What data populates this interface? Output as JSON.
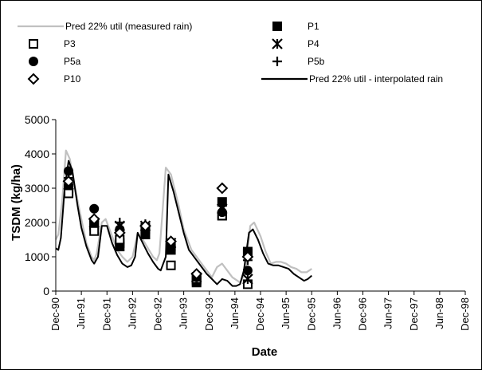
{
  "chart_data": {
    "type": "line",
    "xlabel": "Date",
    "ylabel": "TSDM (kg/ha)",
    "ylim": [
      0,
      5000
    ],
    "yticks": [
      0,
      1000,
      2000,
      3000,
      4000,
      5000
    ],
    "x_tick_labels": [
      "Dec-90",
      "Jun-91",
      "Dec-91",
      "Jun-92",
      "Dec-92",
      "Jun-93",
      "Dec-93",
      "Jun-94",
      "Dec-94",
      "Jun-95",
      "Dec-95",
      "Jun-96",
      "Dec-96",
      "Jun-97",
      "Dec-97",
      "Jun-98",
      "Dec-98"
    ],
    "grid": false,
    "legend_position": "top",
    "series": [
      {
        "name": "Pred 22% util (measured rain)",
        "kind": "line",
        "color": "#c0c0c0",
        "points": [
          [
            0.0,
            1500
          ],
          [
            0.1,
            1650
          ],
          [
            0.25,
            2600
          ],
          [
            0.4,
            4100
          ],
          [
            0.55,
            3850
          ],
          [
            0.7,
            3200
          ],
          [
            1.0,
            2100
          ],
          [
            1.2,
            1400
          ],
          [
            1.4,
            1000
          ],
          [
            1.5,
            900
          ],
          [
            1.6,
            1100
          ],
          [
            1.8,
            2000
          ],
          [
            1.95,
            2100
          ],
          [
            2.2,
            1600
          ],
          [
            2.4,
            1200
          ],
          [
            2.6,
            1000
          ],
          [
            2.8,
            850
          ],
          [
            3.0,
            1000
          ],
          [
            3.2,
            1700
          ],
          [
            3.4,
            1500
          ],
          [
            3.6,
            1250
          ],
          [
            3.8,
            1000
          ],
          [
            3.95,
            900
          ],
          [
            4.05,
            1100
          ],
          [
            4.3,
            3600
          ],
          [
            4.5,
            3400
          ],
          [
            4.8,
            2500
          ],
          [
            5.0,
            1800
          ],
          [
            5.3,
            1200
          ],
          [
            5.5,
            1000
          ],
          [
            5.7,
            800
          ],
          [
            5.9,
            600
          ],
          [
            6.1,
            400
          ],
          [
            6.3,
            700
          ],
          [
            6.5,
            800
          ],
          [
            6.7,
            600
          ],
          [
            6.9,
            400
          ],
          [
            7.1,
            300
          ],
          [
            7.2,
            250
          ],
          [
            7.4,
            500
          ],
          [
            7.6,
            1900
          ],
          [
            7.75,
            2000
          ],
          [
            8.0,
            1600
          ],
          [
            8.2,
            1150
          ],
          [
            8.4,
            800
          ],
          [
            8.6,
            850
          ],
          [
            8.8,
            850
          ],
          [
            9.0,
            800
          ],
          [
            9.2,
            700
          ],
          [
            9.4,
            650
          ],
          [
            9.6,
            550
          ],
          [
            9.8,
            550
          ],
          [
            10.0,
            650
          ]
        ]
      },
      {
        "name": "Pred 22% util - interpolated rain",
        "kind": "line",
        "color": "#000000",
        "points": [
          [
            0.0,
            1250
          ],
          [
            0.1,
            1200
          ],
          [
            0.2,
            1550
          ],
          [
            0.35,
            3000
          ],
          [
            0.5,
            3800
          ],
          [
            0.65,
            3500
          ],
          [
            0.85,
            2500
          ],
          [
            1.0,
            1850
          ],
          [
            1.2,
            1300
          ],
          [
            1.4,
            900
          ],
          [
            1.5,
            800
          ],
          [
            1.65,
            1000
          ],
          [
            1.8,
            1900
          ],
          [
            2.0,
            1900
          ],
          [
            2.2,
            1400
          ],
          [
            2.4,
            1050
          ],
          [
            2.6,
            800
          ],
          [
            2.8,
            700
          ],
          [
            2.95,
            750
          ],
          [
            3.1,
            1000
          ],
          [
            3.2,
            1700
          ],
          [
            3.4,
            1400
          ],
          [
            3.6,
            1100
          ],
          [
            3.8,
            850
          ],
          [
            4.0,
            650
          ],
          [
            4.1,
            600
          ],
          [
            4.3,
            1000
          ],
          [
            4.4,
            3400
          ],
          [
            4.6,
            2900
          ],
          [
            4.8,
            2300
          ],
          [
            5.0,
            1700
          ],
          [
            5.2,
            1200
          ],
          [
            5.5,
            900
          ],
          [
            5.7,
            700
          ],
          [
            5.9,
            500
          ],
          [
            6.1,
            350
          ],
          [
            6.3,
            200
          ],
          [
            6.5,
            350
          ],
          [
            6.7,
            300
          ],
          [
            6.9,
            150
          ],
          [
            7.05,
            150
          ],
          [
            7.2,
            200
          ],
          [
            7.35,
            600
          ],
          [
            7.55,
            1700
          ],
          [
            7.7,
            1800
          ],
          [
            7.9,
            1500
          ],
          [
            8.1,
            1100
          ],
          [
            8.3,
            800
          ],
          [
            8.5,
            750
          ],
          [
            8.7,
            750
          ],
          [
            8.9,
            700
          ],
          [
            9.1,
            650
          ],
          [
            9.3,
            500
          ],
          [
            9.5,
            400
          ],
          [
            9.7,
            300
          ],
          [
            9.85,
            350
          ],
          [
            10.0,
            450
          ]
        ]
      },
      {
        "name": "P1",
        "kind": "marker",
        "marker": "filled-square",
        "points": [
          [
            0.5,
            3000
          ],
          [
            0.5,
            2900
          ],
          [
            1.5,
            1950
          ],
          [
            1.5,
            1900
          ],
          [
            2.5,
            1300
          ],
          [
            2.5,
            1400
          ],
          [
            3.5,
            1650
          ],
          [
            3.5,
            1800
          ],
          [
            4.5,
            1200
          ],
          [
            4.5,
            1300
          ],
          [
            5.5,
            250
          ],
          [
            5.5,
            300
          ],
          [
            6.5,
            2600
          ],
          [
            6.5,
            2200
          ],
          [
            7.5,
            1100
          ],
          [
            7.5,
            1150
          ]
        ]
      },
      {
        "name": "P3",
        "kind": "marker",
        "marker": "open-square",
        "points": [
          [
            0.5,
            2850
          ],
          [
            1.5,
            1750
          ],
          [
            2.5,
            1500
          ],
          [
            4.5,
            750
          ],
          [
            5.5,
            350
          ],
          [
            6.5,
            2200
          ],
          [
            7.5,
            200
          ]
        ]
      },
      {
        "name": "P4",
        "kind": "marker",
        "marker": "asterisk",
        "points": [
          [
            0.5,
            3100
          ],
          [
            1.5,
            2000
          ],
          [
            2.5,
            1900
          ],
          [
            3.5,
            1900
          ],
          [
            4.5,
            1400
          ],
          [
            5.5,
            400
          ],
          [
            6.5,
            2400
          ],
          [
            7.5,
            350
          ]
        ]
      },
      {
        "name": "P5a",
        "kind": "marker",
        "marker": "filled-circle",
        "points": [
          [
            0.5,
            3500
          ],
          [
            1.5,
            2400
          ],
          [
            2.5,
            1800
          ],
          [
            3.5,
            1850
          ],
          [
            4.5,
            1300
          ],
          [
            5.5,
            400
          ],
          [
            6.5,
            2300
          ],
          [
            7.5,
            600
          ]
        ]
      },
      {
        "name": "P5b",
        "kind": "marker",
        "marker": "plus",
        "points": [
          [
            0.5,
            3300
          ],
          [
            1.5,
            2050
          ],
          [
            2.5,
            2000
          ],
          [
            3.5,
            1950
          ],
          [
            4.5,
            1350
          ],
          [
            5.5,
            450
          ],
          [
            6.5,
            2500
          ],
          [
            7.5,
            900
          ]
        ]
      },
      {
        "name": "P10",
        "kind": "marker",
        "marker": "open-diamond",
        "points": [
          [
            0.5,
            3200
          ],
          [
            1.5,
            2100
          ],
          [
            2.5,
            1700
          ],
          [
            3.5,
            1900
          ],
          [
            4.5,
            1450
          ],
          [
            5.5,
            500
          ],
          [
            6.5,
            3000
          ],
          [
            7.5,
            1000
          ]
        ]
      }
    ]
  }
}
